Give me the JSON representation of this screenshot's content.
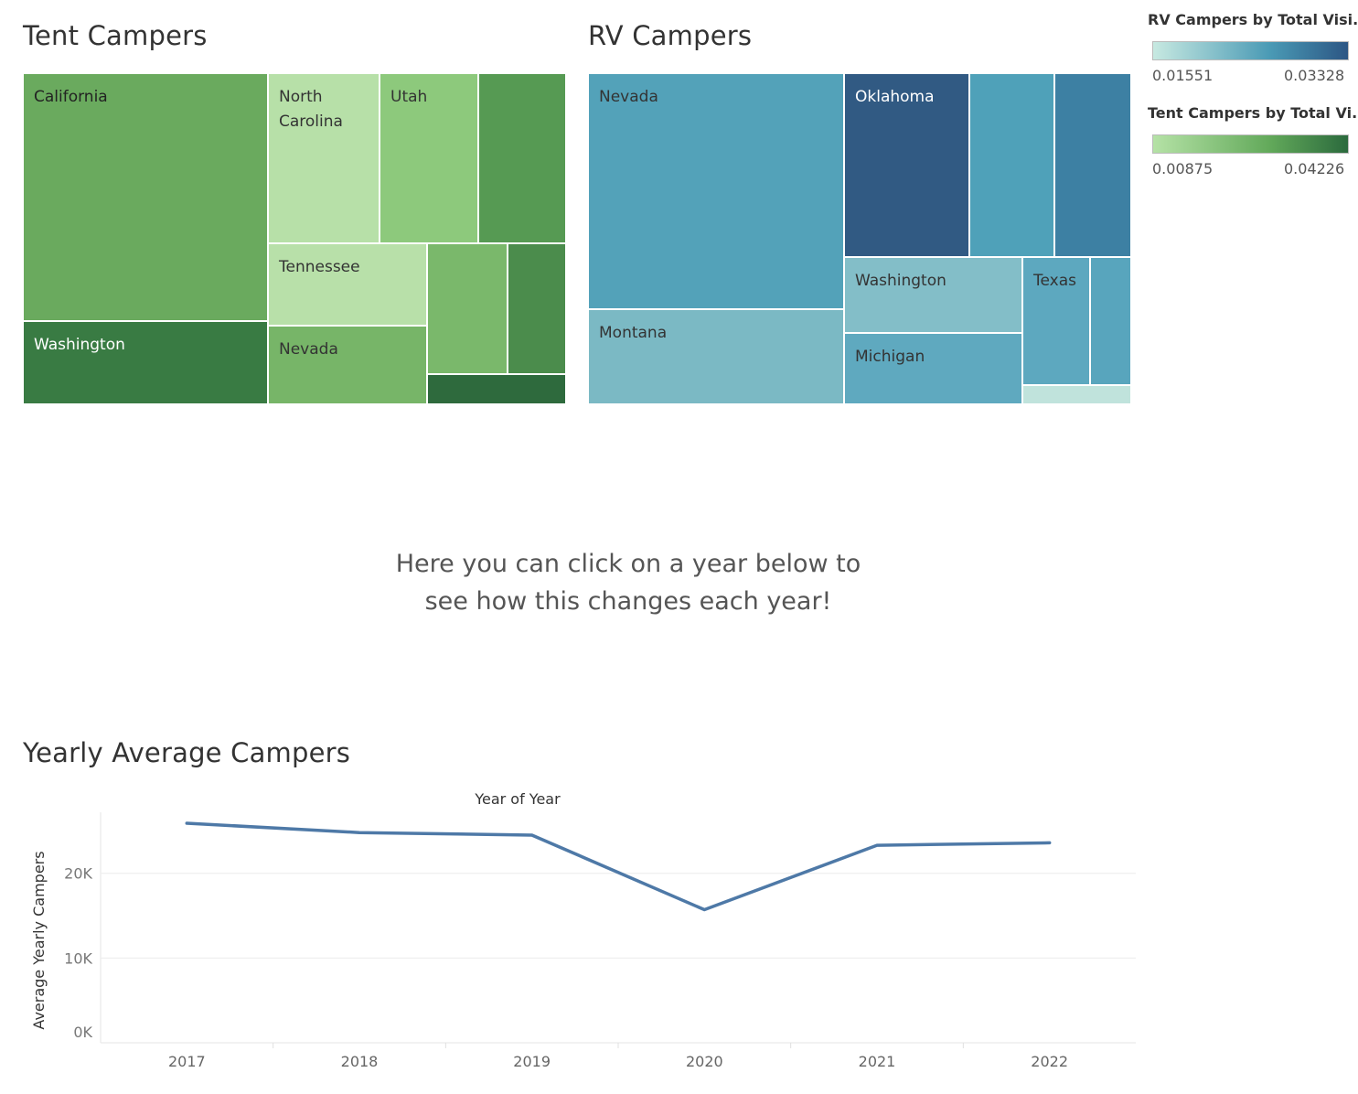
{
  "tent": {
    "title": "Tent Campers",
    "cells": [
      {
        "label": "California",
        "color": "#6aaa5e",
        "text_color": "#222222"
      },
      {
        "label": "North Carolina",
        "color": "#b7e0a8",
        "text_color": "#333333"
      },
      {
        "label": "Utah",
        "color": "#8dc97c",
        "text_color": "#333333"
      },
      {
        "label": "",
        "color": "#569a53"
      },
      {
        "label": "Tennessee",
        "color": "#b8e0a9",
        "text_color": "#333333"
      },
      {
        "label": "",
        "color": "#7ab86b"
      },
      {
        "label": "",
        "color": "#4b8c4c"
      },
      {
        "label": "Washington",
        "color": "#397b43",
        "text_color": "#ffffff"
      },
      {
        "label": "Nevada",
        "color": "#77b568",
        "text_color": "#333333"
      },
      {
        "label": "",
        "color": "#2e6a3d"
      }
    ]
  },
  "rv": {
    "title": "RV Campers",
    "cells": [
      {
        "label": "Nevada",
        "color": "#53a2b9",
        "text_color": "#333333"
      },
      {
        "label": "Oklahoma",
        "color": "#315a83",
        "text_color": "#ffffff"
      },
      {
        "label": "",
        "color": "#4fa1b9"
      },
      {
        "label": "",
        "color": "#3d80a3"
      },
      {
        "label": "Montana",
        "color": "#7bb9c4",
        "text_color": "#333333"
      },
      {
        "label": "Washington",
        "color": "#83bec8",
        "text_color": "#333333"
      },
      {
        "label": "Michigan",
        "color": "#5fa9bf",
        "text_color": "#333333"
      },
      {
        "label": "Texas",
        "color": "#5da8bf",
        "text_color": "#333333"
      },
      {
        "label": "",
        "color": "#58a5bd"
      },
      {
        "label": "",
        "color": "#c0e3dc"
      }
    ]
  },
  "legends": {
    "rv": {
      "title": "RV Campers by Total Visi...",
      "min": "0.01551",
      "max": "0.03328",
      "color_low": "#c7e9e1",
      "color_mid": "#4a9ab5",
      "color_high": "#2c5684"
    },
    "tent": {
      "title": "Tent Campers by Total Vi...",
      "min": "0.00875",
      "max": "0.04226",
      "color_low": "#b5e2a6",
      "color_mid": "#62a95a",
      "color_high": "#2b6a3d"
    }
  },
  "instruction": {
    "line1": "Here you can click on a year below to",
    "line2": "see how this changes each year!"
  },
  "line_chart": {
    "section_title": "Yearly Average Campers"
  },
  "chart_data": {
    "type": "line",
    "title": "Year of Year",
    "ylabel": "Average Yearly Campers",
    "xlabel": "",
    "x": [
      "2017",
      "2018",
      "2019",
      "2020",
      "2021",
      "2022"
    ],
    "series": [
      {
        "values": [
          25900,
          24800,
          24500,
          15700,
          23300,
          23600
        ],
        "color": "#4e79a7"
      }
    ],
    "ylim": [
      0,
      27200
    ],
    "yticks": [
      0,
      10000,
      20000
    ],
    "ytick_labels": [
      "0K",
      "10K",
      "20K"
    ],
    "grid": true
  }
}
